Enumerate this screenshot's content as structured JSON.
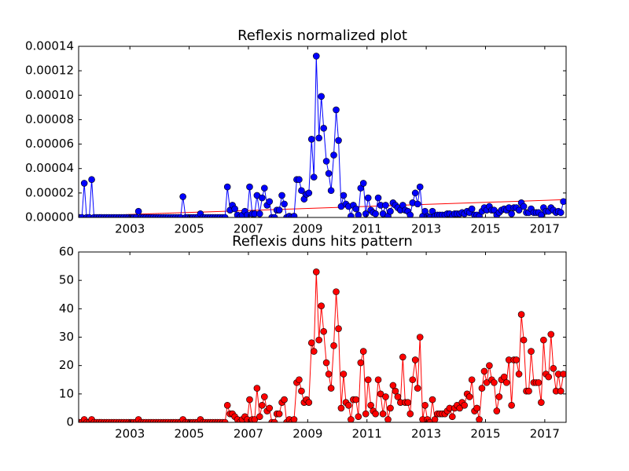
{
  "chart_data": [
    {
      "type": "line",
      "title": "Reflexis normalized plot",
      "x": [
        2001.29,
        2001.38,
        2001.46,
        2001.54,
        2001.63,
        2001.71,
        2001.79,
        2001.88,
        2001.96,
        2002.04,
        2002.13,
        2002.21,
        2002.29,
        2002.38,
        2002.46,
        2002.54,
        2002.63,
        2002.71,
        2002.79,
        2002.88,
        2002.96,
        2003.04,
        2003.13,
        2003.21,
        2003.29,
        2003.38,
        2003.46,
        2003.54,
        2003.63,
        2003.71,
        2003.79,
        2003.88,
        2003.96,
        2004.04,
        2004.13,
        2004.21,
        2004.29,
        2004.38,
        2004.46,
        2004.54,
        2004.63,
        2004.71,
        2004.79,
        2004.88,
        2004.96,
        2005.04,
        2005.13,
        2005.21,
        2005.29,
        2005.38,
        2005.46,
        2005.54,
        2005.63,
        2005.71,
        2005.79,
        2005.88,
        2005.96,
        2006.04,
        2006.13,
        2006.21,
        2006.29,
        2006.38,
        2006.46,
        2006.54,
        2006.63,
        2006.71,
        2006.79,
        2006.88,
        2006.96,
        2007.04,
        2007.13,
        2007.21,
        2007.29,
        2007.38,
        2007.46,
        2007.54,
        2007.63,
        2007.71,
        2007.79,
        2007.88,
        2007.96,
        2008.04,
        2008.13,
        2008.21,
        2008.29,
        2008.38,
        2008.46,
        2008.54,
        2008.63,
        2008.71,
        2008.79,
        2008.88,
        2008.96,
        2009.04,
        2009.13,
        2009.21,
        2009.29,
        2009.38,
        2009.46,
        2009.54,
        2009.63,
        2009.71,
        2009.79,
        2009.88,
        2009.96,
        2010.04,
        2010.13,
        2010.21,
        2010.29,
        2010.38,
        2010.46,
        2010.54,
        2010.63,
        2010.71,
        2010.79,
        2010.88,
        2010.96,
        2011.04,
        2011.13,
        2011.21,
        2011.29,
        2011.38,
        2011.46,
        2011.54,
        2011.63,
        2011.71,
        2011.79,
        2011.88,
        2011.96,
        2012.04,
        2012.13,
        2012.21,
        2012.29,
        2012.38,
        2012.46,
        2012.54,
        2012.63,
        2012.71,
        2012.79,
        2012.88,
        2012.96,
        2013.04,
        2013.13,
        2013.21,
        2013.29,
        2013.38,
        2013.46,
        2013.54,
        2013.63,
        2013.71,
        2013.79,
        2013.88,
        2013.96,
        2014.04,
        2014.13,
        2014.21,
        2014.29,
        2014.38,
        2014.46,
        2014.54,
        2014.63,
        2014.71,
        2014.79,
        2014.88,
        2014.96,
        2015.04,
        2015.13,
        2015.21,
        2015.29,
        2015.38,
        2015.46,
        2015.54,
        2015.63,
        2015.71,
        2015.79,
        2015.88,
        2015.96,
        2016.04,
        2016.13,
        2016.21,
        2016.29,
        2016.38,
        2016.46,
        2016.54,
        2016.63,
        2016.71,
        2016.79,
        2016.88,
        2016.96,
        2017.04,
        2017.13,
        2017.21,
        2017.29,
        2017.38,
        2017.46,
        2017.54,
        2017.63
      ],
      "series": [
        {
          "color": "#0000ff",
          "values": [
            0,
            0,
            2.8e-05,
            0,
            0,
            3.1e-05,
            0,
            0,
            0,
            0,
            0,
            0,
            0,
            0,
            0,
            0,
            0,
            0,
            0,
            0,
            0,
            0,
            0,
            0,
            5e-06,
            0,
            0,
            0,
            0,
            0,
            0,
            0,
            0,
            0,
            0,
            0,
            0,
            0,
            0,
            0,
            0,
            0,
            1.7e-05,
            0,
            0,
            0,
            0,
            0,
            0,
            3e-06,
            0,
            0,
            0,
            0,
            0,
            0,
            0,
            0,
            0,
            0,
            2.5e-05,
            6e-06,
            1e-05,
            7e-06,
            2e-06,
            0,
            2e-06,
            5e-06,
            2e-06,
            2.5e-05,
            3e-06,
            3e-06,
            1.8e-05,
            3e-06,
            1.6e-05,
            2.4e-05,
            1e-05,
            1.3e-05,
            0,
            0,
            6e-06,
            6e-06,
            1.8e-05,
            1.1e-05,
            0,
            1e-06,
            0,
            1e-06,
            3.1e-05,
            3.1e-05,
            2.2e-05,
            1.5e-05,
            1.9e-05,
            2e-05,
            6.4e-05,
            3.3e-05,
            0.000132,
            6.5e-05,
            9.9e-05,
            7.3e-05,
            4.6e-05,
            3.6e-05,
            2.2e-05,
            5.1e-05,
            8.8e-05,
            6.3e-05,
            9e-06,
            1.8e-05,
            1.1e-05,
            9e-06,
            1e-06,
            1e-05,
            7e-06,
            2e-06,
            2.4e-05,
            2.8e-05,
            3e-06,
            1.6e-05,
            6e-06,
            4e-06,
            3e-06,
            1.6e-05,
            1e-05,
            3e-06,
            1e-05,
            1e-06,
            5e-06,
            1.2e-05,
            1e-05,
            8e-06,
            6e-06,
            1e-05,
            6e-06,
            5e-06,
            2e-06,
            1.2e-05,
            2e-05,
            1.1e-05,
            2.5e-05,
            1e-06,
            5e-06,
            1e-06,
            0,
            5e-06,
            1e-06,
            2e-06,
            2e-06,
            2e-06,
            2e-06,
            3e-06,
            3e-06,
            1e-06,
            3e-06,
            3e-06,
            3e-06,
            4e-06,
            3e-06,
            5e-06,
            4e-06,
            7e-06,
            2e-06,
            2e-06,
            1e-06,
            5e-06,
            8e-06,
            6e-06,
            9e-06,
            6e-06,
            6e-06,
            2e-06,
            4e-06,
            6e-06,
            7e-06,
            6e-06,
            8e-06,
            3e-06,
            8e-06,
            8e-06,
            6e-06,
            1.2e-05,
            9e-06,
            4e-06,
            4e-06,
            7e-06,
            4e-06,
            4e-06,
            4e-06,
            2e-06,
            8e-06,
            5e-06,
            5e-06,
            8e-06,
            6e-06,
            4e-06,
            5e-06,
            4e-06,
            1.3e-05
          ]
        }
      ],
      "trend": {
        "color": "#ff0000",
        "x": [
          2001.29,
          2017.63
        ],
        "values": [
          1e-06,
          1.45e-05
        ]
      },
      "xlim": [
        2001.27,
        2017.72
      ],
      "xticks": [
        2003,
        2005,
        2007,
        2009,
        2011,
        2013,
        2015,
        2017
      ],
      "ylim": [
        0,
        0.00014
      ],
      "yticks": [
        {
          "value": 0,
          "label": "0.00000"
        },
        {
          "value": 2e-05,
          "label": "0.00002"
        },
        {
          "value": 4e-05,
          "label": "0.00004"
        },
        {
          "value": 6e-05,
          "label": "0.00006"
        },
        {
          "value": 8e-05,
          "label": "0.00008"
        },
        {
          "value": 0.0001,
          "label": "0.00010"
        },
        {
          "value": 0.00012,
          "label": "0.00012"
        },
        {
          "value": 0.00014,
          "label": "0.00014"
        }
      ]
    },
    {
      "type": "line",
      "title": "Reflexis duns hits pattern",
      "x": [
        2001.29,
        2001.38,
        2001.46,
        2001.54,
        2001.63,
        2001.71,
        2001.79,
        2001.88,
        2001.96,
        2002.04,
        2002.13,
        2002.21,
        2002.29,
        2002.38,
        2002.46,
        2002.54,
        2002.63,
        2002.71,
        2002.79,
        2002.88,
        2002.96,
        2003.04,
        2003.13,
        2003.21,
        2003.29,
        2003.38,
        2003.46,
        2003.54,
        2003.63,
        2003.71,
        2003.79,
        2003.88,
        2003.96,
        2004.04,
        2004.13,
        2004.21,
        2004.29,
        2004.38,
        2004.46,
        2004.54,
        2004.63,
        2004.71,
        2004.79,
        2004.88,
        2004.96,
        2005.04,
        2005.13,
        2005.21,
        2005.29,
        2005.38,
        2005.46,
        2005.54,
        2005.63,
        2005.71,
        2005.79,
        2005.88,
        2005.96,
        2006.04,
        2006.13,
        2006.21,
        2006.29,
        2006.38,
        2006.46,
        2006.54,
        2006.63,
        2006.71,
        2006.79,
        2006.88,
        2006.96,
        2007.04,
        2007.13,
        2007.21,
        2007.29,
        2007.38,
        2007.46,
        2007.54,
        2007.63,
        2007.71,
        2007.79,
        2007.88,
        2007.96,
        2008.04,
        2008.13,
        2008.21,
        2008.29,
        2008.38,
        2008.46,
        2008.54,
        2008.63,
        2008.71,
        2008.79,
        2008.88,
        2008.96,
        2009.04,
        2009.13,
        2009.21,
        2009.29,
        2009.38,
        2009.46,
        2009.54,
        2009.63,
        2009.71,
        2009.79,
        2009.88,
        2009.96,
        2010.04,
        2010.13,
        2010.21,
        2010.29,
        2010.38,
        2010.46,
        2010.54,
        2010.63,
        2010.71,
        2010.79,
        2010.88,
        2010.96,
        2011.04,
        2011.13,
        2011.21,
        2011.29,
        2011.38,
        2011.46,
        2011.54,
        2011.63,
        2011.71,
        2011.79,
        2011.88,
        2011.96,
        2012.04,
        2012.13,
        2012.21,
        2012.29,
        2012.38,
        2012.46,
        2012.54,
        2012.63,
        2012.71,
        2012.79,
        2012.88,
        2012.96,
        2013.04,
        2013.13,
        2013.21,
        2013.29,
        2013.38,
        2013.46,
        2013.54,
        2013.63,
        2013.71,
        2013.79,
        2013.88,
        2013.96,
        2014.04,
        2014.13,
        2014.21,
        2014.29,
        2014.38,
        2014.46,
        2014.54,
        2014.63,
        2014.71,
        2014.79,
        2014.88,
        2014.96,
        2015.04,
        2015.13,
        2015.21,
        2015.29,
        2015.38,
        2015.46,
        2015.54,
        2015.63,
        2015.71,
        2015.79,
        2015.88,
        2015.96,
        2016.04,
        2016.13,
        2016.21,
        2016.29,
        2016.38,
        2016.46,
        2016.54,
        2016.63,
        2016.71,
        2016.79,
        2016.88,
        2016.96,
        2017.04,
        2017.13,
        2017.21,
        2017.29,
        2017.38,
        2017.46,
        2017.54,
        2017.63
      ],
      "series": [
        {
          "color": "#ff0000",
          "values": [
            0,
            0,
            1,
            0,
            0,
            1,
            0,
            0,
            0,
            0,
            0,
            0,
            0,
            0,
            0,
            0,
            0,
            0,
            0,
            0,
            0,
            0,
            0,
            0,
            1,
            0,
            0,
            0,
            0,
            0,
            0,
            0,
            0,
            0,
            0,
            0,
            0,
            0,
            0,
            0,
            0,
            0,
            1,
            0,
            0,
            0,
            0,
            0,
            0,
            1,
            0,
            0,
            0,
            0,
            0,
            0,
            0,
            0,
            0,
            0,
            6,
            3,
            3,
            2,
            1,
            0,
            1,
            2,
            1,
            8,
            1,
            1,
            12,
            2,
            6,
            9,
            4,
            5,
            0,
            0,
            3,
            3,
            7,
            8,
            0,
            1,
            0,
            1,
            14,
            15,
            11,
            7,
            8,
            7,
            28,
            25,
            53,
            29,
            41,
            32,
            21,
            17,
            12,
            27,
            46,
            33,
            5,
            17,
            7,
            6,
            1,
            8,
            8,
            2,
            21,
            25,
            3,
            15,
            6,
            4,
            3,
            15,
            10,
            3,
            9,
            1,
            5,
            13,
            11,
            9,
            7,
            23,
            7,
            7,
            3,
            15,
            22,
            12,
            30,
            1,
            6,
            1,
            0,
            8,
            1,
            3,
            3,
            3,
            3,
            4,
            5,
            2,
            5,
            6,
            5,
            7,
            6,
            10,
            9,
            15,
            4,
            5,
            1,
            12,
            18,
            14,
            20,
            15,
            14,
            4,
            9,
            15,
            16,
            14,
            22,
            6,
            22,
            22,
            17,
            38,
            29,
            11,
            11,
            25,
            14,
            14,
            14,
            7,
            29,
            17,
            16,
            31,
            19,
            11,
            17,
            11,
            17
          ]
        }
      ],
      "xlim": [
        2001.27,
        2017.72
      ],
      "xticks": [
        2003,
        2005,
        2007,
        2009,
        2011,
        2013,
        2015,
        2017
      ],
      "ylim": [
        0,
        60
      ],
      "yticks": [
        0,
        10,
        20,
        30,
        40,
        50,
        60
      ]
    }
  ]
}
